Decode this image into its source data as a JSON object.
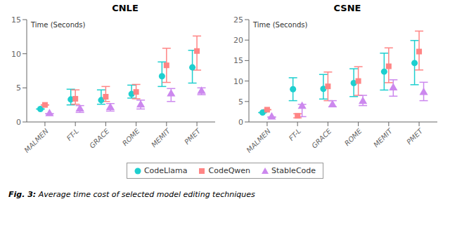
{
  "chart_data": [
    {
      "type": "scatter",
      "title": "CNLE",
      "y_label": "Time (Seconds)",
      "categories": [
        "MALMEN",
        "FT-L",
        "GRACE",
        "ROME",
        "MEMIT",
        "PMET"
      ],
      "ylim": [
        0,
        15
      ],
      "yticks": [
        0,
        5,
        10,
        15
      ],
      "legend": "bottom",
      "series": [
        {
          "name": "CodeLlama",
          "color": "#1ECFCF",
          "marker": "circle",
          "values": [
            1.9,
            3.3,
            3.2,
            4.1,
            6.7,
            8.0
          ],
          "errors_low": [
            0.0,
            0.8,
            0.6,
            0.6,
            1.5,
            2.3
          ],
          "errors_high": [
            0.0,
            1.5,
            1.5,
            1.3,
            2.1,
            2.5
          ]
        },
        {
          "name": "CodeQwen",
          "color": "#FF8585",
          "marker": "square",
          "values": [
            2.5,
            3.4,
            3.7,
            4.4,
            8.3,
            10.4
          ],
          "errors_low": [
            0.0,
            0.8,
            0.7,
            1.0,
            2.5,
            2.8
          ],
          "errors_high": [
            0.0,
            1.3,
            1.5,
            1.1,
            2.5,
            2.2
          ]
        },
        {
          "name": "StableCode",
          "color": "#CC88EE",
          "marker": "triangle",
          "values": [
            1.2,
            1.9,
            2.1,
            2.5,
            4.1,
            4.5
          ],
          "errors_low": [
            0.0,
            0.5,
            0.5,
            0.6,
            1.1,
            0.5
          ],
          "errors_high": [
            0.0,
            0.5,
            0.6,
            0.7,
            0.8,
            0.5
          ]
        }
      ]
    },
    {
      "type": "scatter",
      "title": "CSNE",
      "y_label": "Time (Seconds)",
      "categories": [
        "MALMEN",
        "FT-L",
        "GRACE",
        "ROME",
        "MEMIT",
        "PMET"
      ],
      "ylim": [
        0,
        25
      ],
      "yticks": [
        0,
        5,
        10,
        15,
        20,
        25
      ],
      "legend": "bottom",
      "series": [
        {
          "name": "CodeLlama",
          "color": "#1ECFCF",
          "marker": "circle",
          "values": [
            2.3,
            8.0,
            8.1,
            9.5,
            12.3,
            14.4
          ],
          "errors_low": [
            0.0,
            2.8,
            2.5,
            3.3,
            4.5,
            5.3
          ],
          "errors_high": [
            0.0,
            2.8,
            3.5,
            3.5,
            4.5,
            5.5
          ]
        },
        {
          "name": "CodeQwen",
          "color": "#FF8585",
          "marker": "square",
          "values": [
            3.0,
            1.5,
            8.7,
            10.0,
            13.6,
            17.2
          ],
          "errors_low": [
            0.0,
            0.5,
            3.5,
            3.5,
            4.0,
            4.5
          ],
          "errors_high": [
            0.0,
            0.5,
            3.5,
            3.5,
            4.5,
            5.0
          ]
        },
        {
          "name": "StableCode",
          "color": "#CC88EE",
          "marker": "triangle",
          "values": [
            1.2,
            3.8,
            4.2,
            5.0,
            8.3,
            7.2
          ],
          "errors_low": [
            0.0,
            2.5,
            0.5,
            1.0,
            2.0,
            2.0
          ],
          "errors_high": [
            0.0,
            0.5,
            1.0,
            1.5,
            2.0,
            2.5
          ]
        }
      ]
    }
  ],
  "annotations": [
    "Fig. 3:",
    "Average time cost of selected model editing techniques"
  ]
}
